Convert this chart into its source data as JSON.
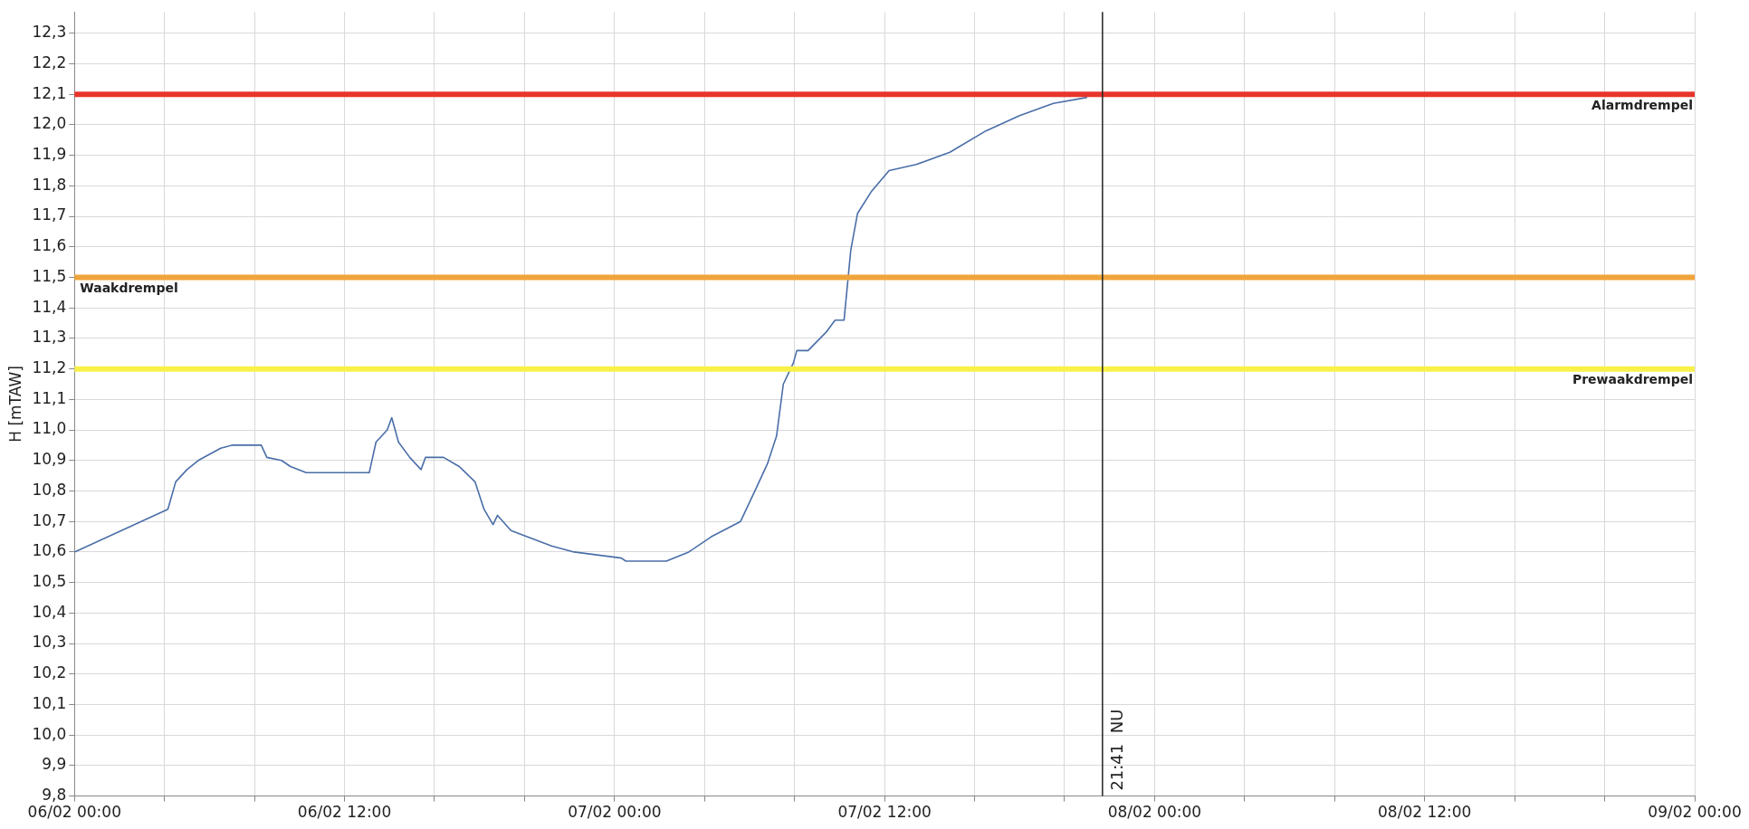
{
  "chart_data": {
    "type": "line",
    "ylabel": "H [mTAW]",
    "grid": true,
    "legend": false,
    "marker": "none",
    "line_style": "solid",
    "xlim": [
      "--02-06T00:00",
      "--02-09T00:00"
    ],
    "xticks": [
      {
        "value": "--02-06T00:00",
        "label": "06/02 00:00"
      },
      {
        "value": "--02-06T04:00",
        "label": null
      },
      {
        "value": "--02-06T08:00",
        "label": null
      },
      {
        "value": "--02-06T12:00",
        "label": "06/02 12:00"
      },
      {
        "value": "--02-06T16:00",
        "label": null
      },
      {
        "value": "--02-06T20:00",
        "label": null
      },
      {
        "value": "--02-07T00:00",
        "label": "07/02 00:00"
      },
      {
        "value": "--02-07T04:00",
        "label": null
      },
      {
        "value": "--02-07T08:00",
        "label": null
      },
      {
        "value": "--02-07T12:00",
        "label": "07/02 12:00"
      },
      {
        "value": "--02-07T16:00",
        "label": null
      },
      {
        "value": "--02-07T20:00",
        "label": null
      },
      {
        "value": "--02-08T00:00",
        "label": "08/02 00:00"
      },
      {
        "value": "--02-08T04:00",
        "label": null
      },
      {
        "value": "--02-08T08:00",
        "label": null
      },
      {
        "value": "--02-08T12:00",
        "label": "08/02 12:00"
      },
      {
        "value": "--02-08T16:00",
        "label": null
      },
      {
        "value": "--02-08T20:00",
        "label": null
      },
      {
        "value": "--02-09T00:00",
        "label": "09/02 00:00"
      }
    ],
    "ylim": [
      9.8,
      12.37
    ],
    "yticks": [
      {
        "value": 9.8,
        "label": "9,8"
      },
      {
        "value": 9.9,
        "label": "9,9"
      },
      {
        "value": 10,
        "label": "10,0"
      },
      {
        "value": 10.1,
        "label": "10,1"
      },
      {
        "value": 10.2,
        "label": "10,2"
      },
      {
        "value": 10.3,
        "label": "10,3"
      },
      {
        "value": 10.4,
        "label": "10,4"
      },
      {
        "value": 10.5,
        "label": "10,5"
      },
      {
        "value": 10.6,
        "label": "10,6"
      },
      {
        "value": 10.7,
        "label": "10,7"
      },
      {
        "value": 10.8,
        "label": "10,8"
      },
      {
        "value": 10.9,
        "label": "10,9"
      },
      {
        "value": 11,
        "label": "11,0"
      },
      {
        "value": 11.1,
        "label": "11,1"
      },
      {
        "value": 11.2,
        "label": "11,2"
      },
      {
        "value": 11.3,
        "label": "11,3"
      },
      {
        "value": 11.4,
        "label": "11,4"
      },
      {
        "value": 11.5,
        "label": "11,5"
      },
      {
        "value": 11.6,
        "label": "11,6"
      },
      {
        "value": 11.7,
        "label": "11,7"
      },
      {
        "value": 11.8,
        "label": "11,8"
      },
      {
        "value": 11.9,
        "label": "11,9"
      },
      {
        "value": 12,
        "label": "12,0"
      },
      {
        "value": 12.1,
        "label": "12,1"
      },
      {
        "value": 12.2,
        "label": "12,2"
      },
      {
        "value": 12.3,
        "label": "12,3"
      }
    ],
    "series": [
      {
        "color": "#4a6ea8",
        "x": [
          "--02-06T00:00",
          "--02-06T04:09",
          "--02-06T04:30",
          "--02-06T05:00",
          "--02-06T05:30",
          "--02-06T06:30",
          "--02-06T07:00",
          "--02-06T08:18",
          "--02-06T08:33",
          "--02-06T09:12",
          "--02-06T09:36",
          "--02-06T10:18",
          "--02-06T13:06",
          "--02-06T13:24",
          "--02-06T13:54",
          "--02-06T14:06",
          "--02-06T14:24",
          "--02-06T14:54",
          "--02-06T15:24",
          "--02-06T15:36",
          "--02-06T16:24",
          "--02-06T17:06",
          "--02-06T17:48",
          "--02-06T18:12",
          "--02-06T18:36",
          "--02-06T18:48",
          "--02-06T19:24",
          "--02-06T21:12",
          "--02-06T22:12",
          "--02-07T00:18",
          "--02-07T00:30",
          "--02-07T02:18",
          "--02-07T03:18",
          "--02-07T04:18",
          "--02-07T05:36",
          "--02-07T06:18",
          "--02-07T06:48",
          "--02-07T07:12",
          "--02-07T07:30",
          "--02-07T07:57",
          "--02-07T08:06",
          "--02-07T08:36",
          "--02-07T09:24",
          "--02-07T09:48",
          "--02-07T10:12",
          "--02-07T10:30",
          "--02-07T10:48",
          "--02-07T11:24",
          "--02-07T12:12",
          "--02-07T13:24",
          "--02-07T14:54",
          "--02-07T16:30",
          "--02-07T18:00",
          "--02-07T19:30",
          "--02-07T21:00"
        ],
        "values": [
          10.6,
          10.74,
          10.83,
          10.87,
          10.9,
          10.94,
          10.95,
          10.95,
          10.91,
          10.9,
          10.88,
          10.86,
          10.86,
          10.96,
          11,
          11.04,
          10.96,
          10.91,
          10.87,
          10.91,
          10.91,
          10.88,
          10.83,
          10.74,
          10.69,
          10.72,
          10.67,
          10.62,
          10.6,
          10.58,
          10.57,
          10.57,
          10.6,
          10.65,
          10.7,
          10.81,
          10.89,
          10.98,
          11.15,
          11.22,
          11.26,
          11.26,
          11.32,
          11.36,
          11.36,
          11.59,
          11.71,
          11.78,
          11.85,
          11.87,
          11.91,
          11.98,
          12.03,
          12.07,
          12.09
        ]
      }
    ],
    "ref_lines": [
      {
        "axis": "y",
        "value": 12.1,
        "label": "Alarmdrempel",
        "color": "#e8352c"
      },
      {
        "axis": "y",
        "value": 11.5,
        "label": "Waakdrempel",
        "color": "#f0a43a"
      },
      {
        "axis": "y",
        "value": 11.2,
        "label": "Prewaakdrempel",
        "color": "#f7f14a"
      },
      {
        "axis": "x",
        "value": "--02-07T21:41",
        "label": "21:41  NU",
        "color": "#222222"
      }
    ]
  }
}
